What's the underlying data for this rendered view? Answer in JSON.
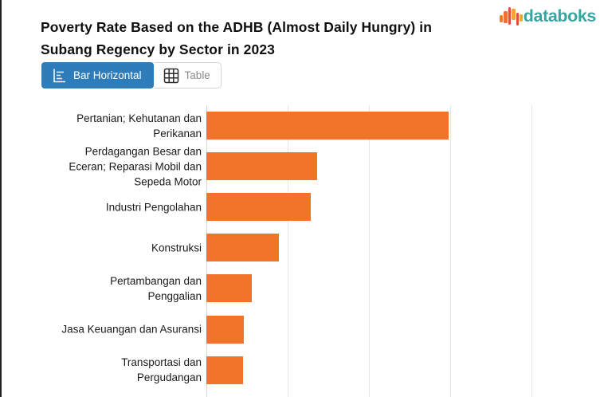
{
  "header": {
    "title": "Poverty Rate Based on the ADHB (Almost Daily Hungry) in Subang Regency by Sector in 2023",
    "logo": {
      "text": "databoks",
      "text_color": "#34a7a1"
    }
  },
  "toolbar": {
    "view_toggle": [
      {
        "label": "Bar Horizontal",
        "icon": "bar-horizontal-icon",
        "active": true,
        "active_color": "#2e7cb9"
      },
      {
        "label": "Table",
        "icon": "table-icon",
        "active": false
      }
    ]
  },
  "chart_data": {
    "type": "bar",
    "orientation": "horizontal",
    "title": "Poverty Rate Based on the ADHB (Almost Daily Hungry) in Subang Regency by Sector in 2023",
    "categories": [
      "Pertanian; Kehutanan dan Perikanan",
      "Perdagangan Besar dan Eceran; Reparasi Mobil dan Sepeda Motor",
      "Industri Pengolahan",
      "Konstruksi",
      "Pertambangan dan Penggalian",
      "Jasa Keuangan dan Asuransi",
      "Transportasi dan Pergudangan"
    ],
    "categories_wrapped": [
      [
        "Pertanian; Kehutanan dan",
        "Perikanan"
      ],
      [
        "Perdagangan Besar dan",
        "Eceran; Reparasi Mobil dan",
        "Sepeda Motor"
      ],
      [
        "Industri Pengolahan"
      ],
      [
        "Konstruksi"
      ],
      [
        "Pertambangan dan",
        "Penggalian"
      ],
      [
        "Jasa Keuangan dan Asuransi"
      ],
      [
        "Transportasi dan",
        "Pergudangan"
      ]
    ],
    "values": [
      2.98,
      1.36,
      1.28,
      0.89,
      0.56,
      0.46,
      0.45
    ],
    "value_axis": {
      "xlim": [
        0,
        4.84
      ],
      "gridline_interval": 1,
      "tick_labels_visible": false
    },
    "xlabel": "",
    "ylabel": "",
    "legend": "none",
    "bar_color": "#f1742a",
    "gridline_count": 5
  }
}
